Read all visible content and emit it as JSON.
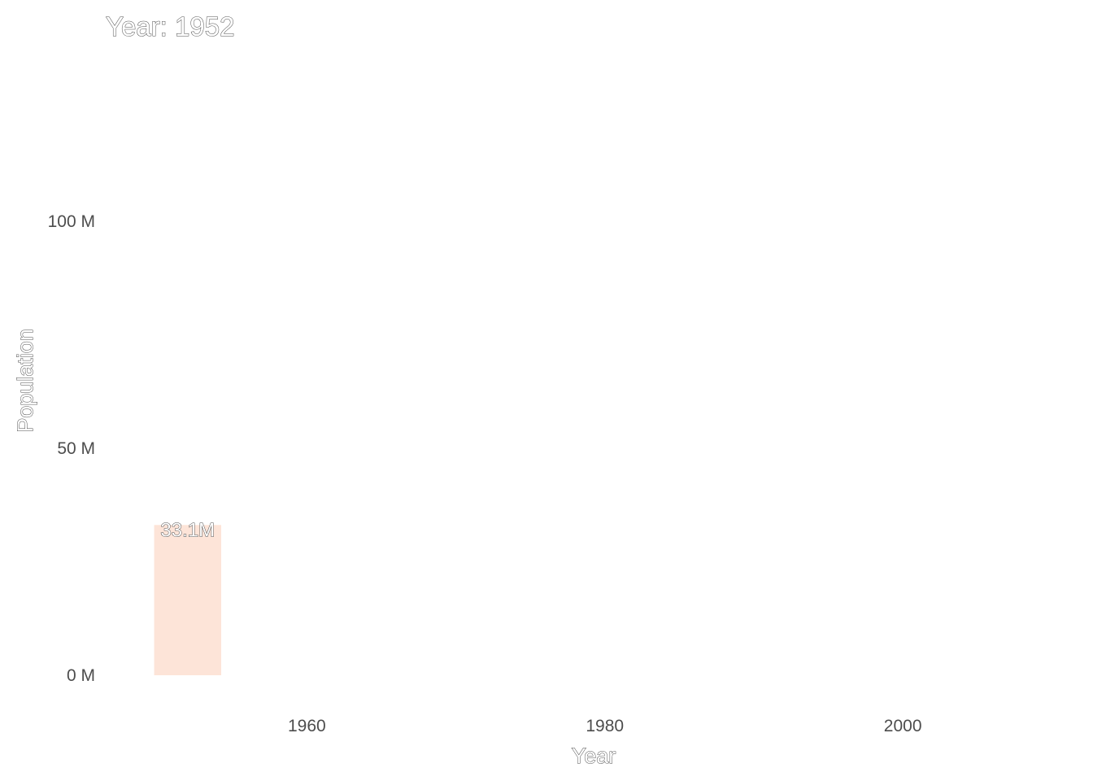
{
  "chart_data": {
    "type": "bar",
    "title": "Year: 1952",
    "xlabel": "Year",
    "ylabel": "Population",
    "x": [
      1952
    ],
    "values": [
      33.1
    ],
    "data_labels": [
      "33.1M"
    ],
    "bar_color": "#fde4d8",
    "xlim": [
      1946.5,
      2012
    ],
    "ylim": [
      0,
      138
    ],
    "x_ticks": [
      {
        "value": 1960,
        "label": "1960"
      },
      {
        "value": 1980,
        "label": "1980"
      },
      {
        "value": 2000,
        "label": "2000"
      }
    ],
    "y_ticks": [
      {
        "value": 0,
        "label": "0 M"
      },
      {
        "value": 50,
        "label": "50 M"
      },
      {
        "value": 100,
        "label": "100 M"
      }
    ],
    "bar_width": 4.5,
    "grid": false,
    "legend": "none"
  }
}
